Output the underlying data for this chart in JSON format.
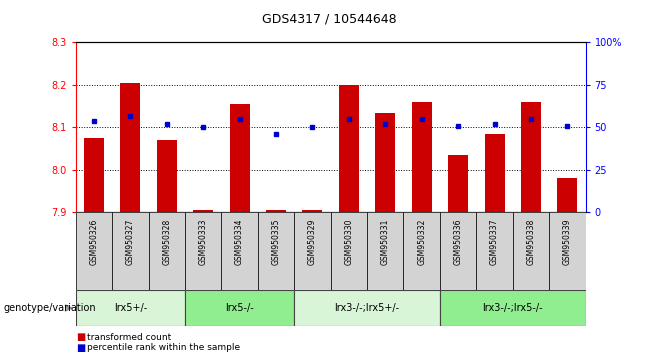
{
  "title": "GDS4317 / 10544648",
  "samples": [
    "GSM950326",
    "GSM950327",
    "GSM950328",
    "GSM950333",
    "GSM950334",
    "GSM950335",
    "GSM950329",
    "GSM950330",
    "GSM950331",
    "GSM950332",
    "GSM950336",
    "GSM950337",
    "GSM950338",
    "GSM950339"
  ],
  "transformed_count": [
    8.075,
    8.205,
    8.07,
    7.905,
    8.155,
    7.905,
    7.905,
    8.2,
    8.135,
    8.16,
    8.035,
    8.085,
    8.16,
    7.98
  ],
  "percentile_rank": [
    54,
    57,
    52,
    50,
    55,
    46,
    50,
    55,
    52,
    55,
    51,
    52,
    55,
    51
  ],
  "groups": [
    {
      "label": "lrx5+/-",
      "start": 0,
      "end": 3,
      "color": "#d8f5d8"
    },
    {
      "label": "lrx5-/-",
      "start": 3,
      "end": 6,
      "color": "#90ee90"
    },
    {
      "label": "lrx3-/-;lrx5+/-",
      "start": 6,
      "end": 10,
      "color": "#d8f5d8"
    },
    {
      "label": "lrx3-/-;lrx5-/-",
      "start": 10,
      "end": 14,
      "color": "#90ee90"
    }
  ],
  "ylim_left": [
    7.9,
    8.3
  ],
  "ylim_right": [
    0,
    100
  ],
  "bar_color": "#cc0000",
  "dot_color": "#0000cc",
  "yticks_left": [
    7.9,
    8.0,
    8.1,
    8.2,
    8.3
  ],
  "yticks_right": [
    0,
    25,
    50,
    75,
    100
  ],
  "ytick_labels_right": [
    "0",
    "25",
    "50",
    "75",
    "100%"
  ],
  "bg_color": "#ffffff",
  "grid_color": "black"
}
